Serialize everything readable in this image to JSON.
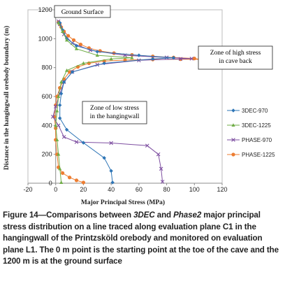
{
  "chart_data": {
    "type": "scatter",
    "xlabel": "Major Principal Stress (MPa)",
    "ylabel": "Distance in the hangingwall orebody boundary (m)",
    "xlim": [
      -20,
      120
    ],
    "ylim": [
      0,
      1200
    ],
    "xticks": [
      -20,
      0,
      20,
      40,
      60,
      80,
      100,
      120
    ],
    "yticks": [
      0,
      200,
      400,
      600,
      800,
      1000,
      1200
    ],
    "grid": false,
    "legend_position": "right",
    "annotations": [
      {
        "text": "Ground Surface",
        "boxed": true
      },
      {
        "text": "Zone of high stress\nin cave back",
        "boxed": true
      },
      {
        "text": "Zone of low stress\nin the hangingwall",
        "boxed": true
      }
    ],
    "series": [
      {
        "name": "3DEC-970",
        "color": "#2e75b6",
        "marker": "diamond",
        "points": [
          [
            41,
            5
          ],
          [
            40,
            85
          ],
          [
            35,
            175
          ],
          [
            20,
            280
          ],
          [
            8,
            370
          ],
          [
            3,
            450
          ],
          [
            3,
            540
          ],
          [
            4,
            620
          ],
          [
            6,
            700
          ],
          [
            12,
            770
          ],
          [
            35,
            830
          ],
          [
            70,
            860
          ],
          [
            85,
            868
          ],
          [
            60,
            885
          ],
          [
            30,
            910
          ],
          [
            15,
            950
          ],
          [
            8,
            1000
          ],
          [
            5,
            1060
          ],
          [
            3,
            1110
          ]
        ]
      },
      {
        "name": "3DEC-1225",
        "color": "#70ad47",
        "marker": "triangle",
        "points": [
          [
            4,
            5
          ],
          [
            3,
            100
          ],
          [
            2,
            200
          ],
          [
            1,
            300
          ],
          [
            0,
            400
          ],
          [
            1,
            500
          ],
          [
            2,
            600
          ],
          [
            4,
            700
          ],
          [
            8,
            780
          ],
          [
            20,
            830
          ],
          [
            40,
            860
          ],
          [
            55,
            868
          ],
          [
            30,
            885
          ],
          [
            15,
            930
          ],
          [
            8,
            990
          ],
          [
            5,
            1050
          ],
          [
            2,
            1110
          ]
        ]
      },
      {
        "name": "PHASE-970",
        "color": "#7e4fa1",
        "marker": "x",
        "points": [
          [
            77,
            10
          ],
          [
            76,
            100
          ],
          [
            74,
            200
          ],
          [
            66,
            260
          ],
          [
            40,
            278
          ],
          [
            15,
            285
          ],
          [
            6,
            320
          ],
          [
            2,
            400
          ],
          [
            -2,
            460
          ],
          [
            0,
            530
          ],
          [
            3,
            620
          ],
          [
            6,
            700
          ],
          [
            12,
            770
          ],
          [
            30,
            820
          ],
          [
            60,
            850
          ],
          [
            90,
            860
          ],
          [
            98,
            862
          ],
          [
            80,
            870
          ],
          [
            50,
            885
          ],
          [
            25,
            920
          ],
          [
            12,
            970
          ],
          [
            6,
            1030
          ],
          [
            3,
            1100
          ],
          [
            2,
            1120
          ]
        ]
      },
      {
        "name": "PHASE-1225",
        "color": "#ed7d31",
        "marker": "circle",
        "points": [
          [
            20,
            5
          ],
          [
            15,
            20
          ],
          [
            10,
            40
          ],
          [
            5,
            70
          ],
          [
            2,
            110
          ],
          [
            1,
            200
          ],
          [
            0,
            300
          ],
          [
            0,
            380
          ],
          [
            -1,
            460
          ],
          [
            0,
            540
          ],
          [
            1,
            600
          ],
          [
            3,
            660
          ],
          [
            6,
            720
          ],
          [
            10,
            770
          ],
          [
            16,
            805
          ],
          [
            24,
            830
          ],
          [
            35,
            845
          ],
          [
            50,
            852
          ],
          [
            70,
            856
          ],
          [
            90,
            858
          ],
          [
            104,
            857
          ],
          [
            100,
            863
          ],
          [
            85,
            870
          ],
          [
            70,
            878
          ],
          [
            55,
            888
          ],
          [
            42,
            900
          ],
          [
            32,
            915
          ],
          [
            24,
            935
          ],
          [
            18,
            960
          ],
          [
            13,
            990
          ],
          [
            9,
            1020
          ],
          [
            6,
            1050
          ],
          [
            4,
            1080
          ],
          [
            3,
            1100
          ],
          [
            2,
            1115
          ]
        ]
      }
    ]
  },
  "caption": {
    "prefix": "Figure 14—Comparisons between ",
    "italic1": "3DEC",
    "mid1": " and ",
    "italic2": "Phase2",
    "suffix": " major principal stress distribution on a line traced along evaluation plane C1 in the hangingwall of the Printzsköld orebody and monitored on evaluation plane L1. The 0 m point is the starting point at the toe of the cave and the 1200 m is at the ground surface"
  }
}
